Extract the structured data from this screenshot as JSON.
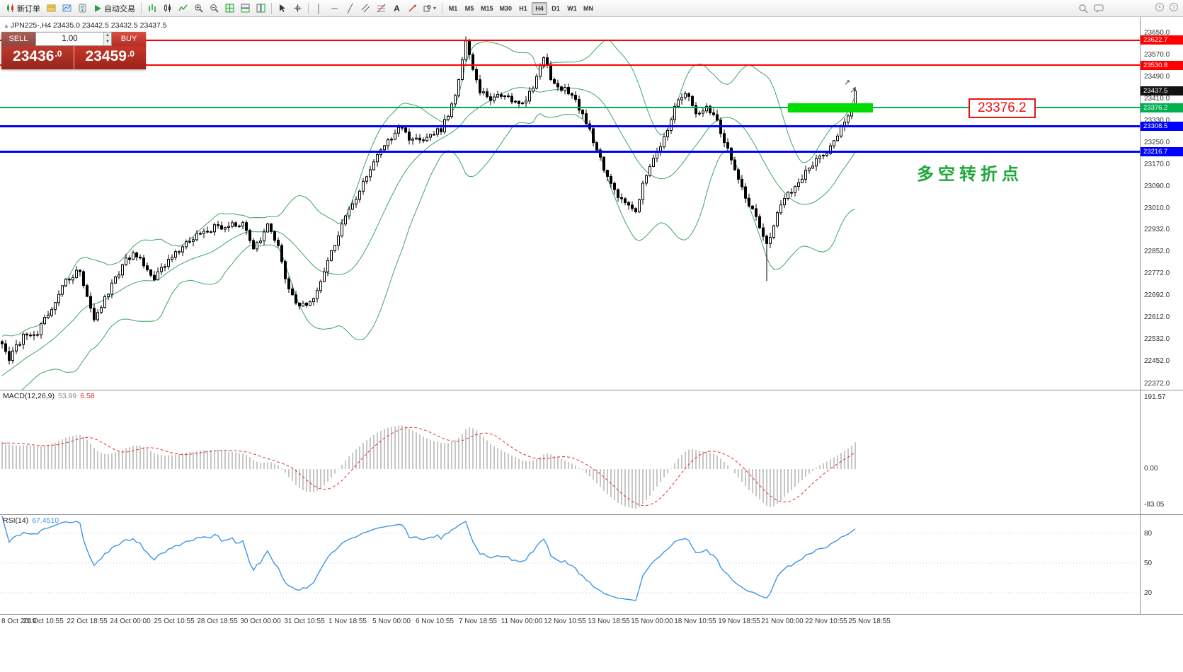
{
  "toolbar": {
    "new_order": "新订单",
    "auto_trading": "自动交易",
    "text_tool": "A",
    "timeframes": [
      "M1",
      "M5",
      "M15",
      "M30",
      "H1",
      "H4",
      "D1",
      "W1",
      "MN"
    ],
    "active_timeframe": "H4"
  },
  "chart": {
    "marker": "▲",
    "symbol_info": "JPN225-,H4  23435.0 23442.5 23432.5 23437.5",
    "trade_panel": {
      "sell_label": "SELL",
      "buy_label": "BUY",
      "volume": "1.00",
      "sell_price_main": "23436",
      "sell_price_sup": ".0",
      "buy_price_main": "23459",
      "buy_price_sup": ".0"
    },
    "price_callout": "23376.2",
    "annotation": "多空转折点",
    "annotation_color": "#1FA83A",
    "current_price_tag": "23437.5"
  },
  "icons": {
    "buy_arrow": "↗"
  },
  "price_axis": {
    "ticks": [
      "23650.0",
      "23570.0",
      "23490.0",
      "23410.0",
      "23330.0",
      "23250.0",
      "23170.0",
      "23090.0",
      "23010.0",
      "22932.0",
      "22852.0",
      "22772.0",
      "22692.0",
      "22612.0",
      "22532.0",
      "22452.0",
      "22372.0"
    ]
  },
  "hlines": [
    {
      "price": 23622.7,
      "label": "23622.7",
      "color": "#FF0000",
      "width": 2
    },
    {
      "price": 23530.8,
      "label": "23530.8",
      "color": "#FF0000",
      "width": 2
    },
    {
      "price": 23376.2,
      "label": "23376.2",
      "color": "#00B050",
      "width": 2
    },
    {
      "price": 23308.5,
      "label": "23308.5",
      "color": "#0000FF",
      "width": 3
    },
    {
      "price": 23216.7,
      "label": "23216.7",
      "color": "#0000FF",
      "width": 3
    }
  ],
  "highlight_rect": {
    "price": 23376.2,
    "start_index": 222,
    "end_index": 246,
    "color": "#00DD00"
  },
  "macd": {
    "label": "MACD(12,26,9)",
    "value_main": "53.99",
    "value_signal": "6.58",
    "axis": [
      "191.57",
      "0.00",
      "-83.05"
    ]
  },
  "rsi": {
    "label": "RSI(14)",
    "value": "67.4510",
    "levels": [
      "80",
      "50",
      "20"
    ]
  },
  "colors": {
    "bollinger": "#3DA564",
    "candle_up": "#FFFFFF",
    "candle_down": "#000000",
    "macd_hist": "#C6C6C6",
    "macd_signal": "#E03030",
    "rsi_line": "#3E95E6"
  },
  "chart_data": {
    "type": "candlestick",
    "symbol": "JPN225-",
    "timeframe": "H4",
    "title": "JPN225-,H4",
    "ohlc_last": {
      "open": 23435.0,
      "high": 23442.5,
      "low": 23432.5,
      "close": 23437.5
    },
    "y_axis_range": [
      22372.0,
      23650.0
    ],
    "candle_count": 242,
    "price_anchors": [
      [
        0,
        22520
      ],
      [
        2,
        22465
      ],
      [
        6,
        22540
      ],
      [
        10,
        22560
      ],
      [
        14,
        22640
      ],
      [
        18,
        22750
      ],
      [
        22,
        22780
      ],
      [
        24,
        22700
      ],
      [
        26,
        22610
      ],
      [
        30,
        22700
      ],
      [
        34,
        22800
      ],
      [
        37,
        22850
      ],
      [
        40,
        22800
      ],
      [
        43,
        22760
      ],
      [
        47,
        22820
      ],
      [
        52,
        22880
      ],
      [
        56,
        22920
      ],
      [
        60,
        22940
      ],
      [
        64,
        22950
      ],
      [
        68,
        22960
      ],
      [
        71,
        22850
      ],
      [
        75,
        22940
      ],
      [
        78,
        22870
      ],
      [
        80,
        22760
      ],
      [
        83,
        22660
      ],
      [
        86,
        22660
      ],
      [
        89,
        22710
      ],
      [
        93,
        22850
      ],
      [
        97,
        22980
      ],
      [
        101,
        23070
      ],
      [
        105,
        23180
      ],
      [
        108,
        23240
      ],
      [
        112,
        23300
      ],
      [
        115,
        23270
      ],
      [
        118,
        23255
      ],
      [
        121,
        23280
      ],
      [
        124,
        23300
      ],
      [
        127,
        23380
      ],
      [
        129,
        23480
      ],
      [
        131,
        23620
      ],
      [
        133,
        23520
      ],
      [
        135,
        23440
      ],
      [
        138,
        23400
      ],
      [
        141,
        23420
      ],
      [
        144,
        23400
      ],
      [
        147,
        23390
      ],
      [
        150,
        23450
      ],
      [
        153,
        23570
      ],
      [
        155,
        23490
      ],
      [
        158,
        23450
      ],
      [
        161,
        23420
      ],
      [
        164,
        23350
      ],
      [
        167,
        23260
      ],
      [
        170,
        23150
      ],
      [
        173,
        23080
      ],
      [
        176,
        23020
      ],
      [
        179,
        22990
      ],
      [
        182,
        23140
      ],
      [
        185,
        23220
      ],
      [
        188,
        23300
      ],
      [
        191,
        23410
      ],
      [
        193,
        23440
      ],
      [
        196,
        23350
      ],
      [
        199,
        23390
      ],
      [
        202,
        23330
      ],
      [
        204,
        23250
      ],
      [
        207,
        23150
      ],
      [
        210,
        23050
      ],
      [
        213,
        22980
      ],
      [
        216,
        22870
      ],
      [
        219,
        22990
      ],
      [
        222,
        23060
      ],
      [
        225,
        23100
      ],
      [
        228,
        23160
      ],
      [
        231,
        23190
      ],
      [
        234,
        23230
      ],
      [
        237,
        23300
      ],
      [
        239,
        23350
      ],
      [
        241,
        23437.5
      ]
    ],
    "special_lows": {
      "216": 22745
    },
    "indicators": {
      "bollinger": {
        "period": 20,
        "deviation": 2
      },
      "macd": [
        12,
        26,
        9
      ],
      "rsi": 14
    },
    "levels": [
      23622.7,
      23530.8,
      23376.2,
      23308.5,
      23216.7
    ],
    "time_axis": [
      "8 Oct 2019",
      "21 Oct 10:55",
      "22 Oct 18:55",
      "24 Oct 00:00",
      "25 Oct 10:55",
      "28 Oct 18:55",
      "30 Oct 00:00",
      "31 Oct 10:55",
      "1 Nov 18:55",
      "5 Nov 00:00",
      "6 Nov 10:55",
      "7 Nov 18:55",
      "11 Nov 00:00",
      "12 Nov 10:55",
      "13 Nov 18:55",
      "15 Nov 00:00",
      "18 Nov 10:55",
      "19 Nov 18:55",
      "21 Nov 00:00",
      "22 Nov 10:55",
      "25 Nov 18:55"
    ]
  }
}
